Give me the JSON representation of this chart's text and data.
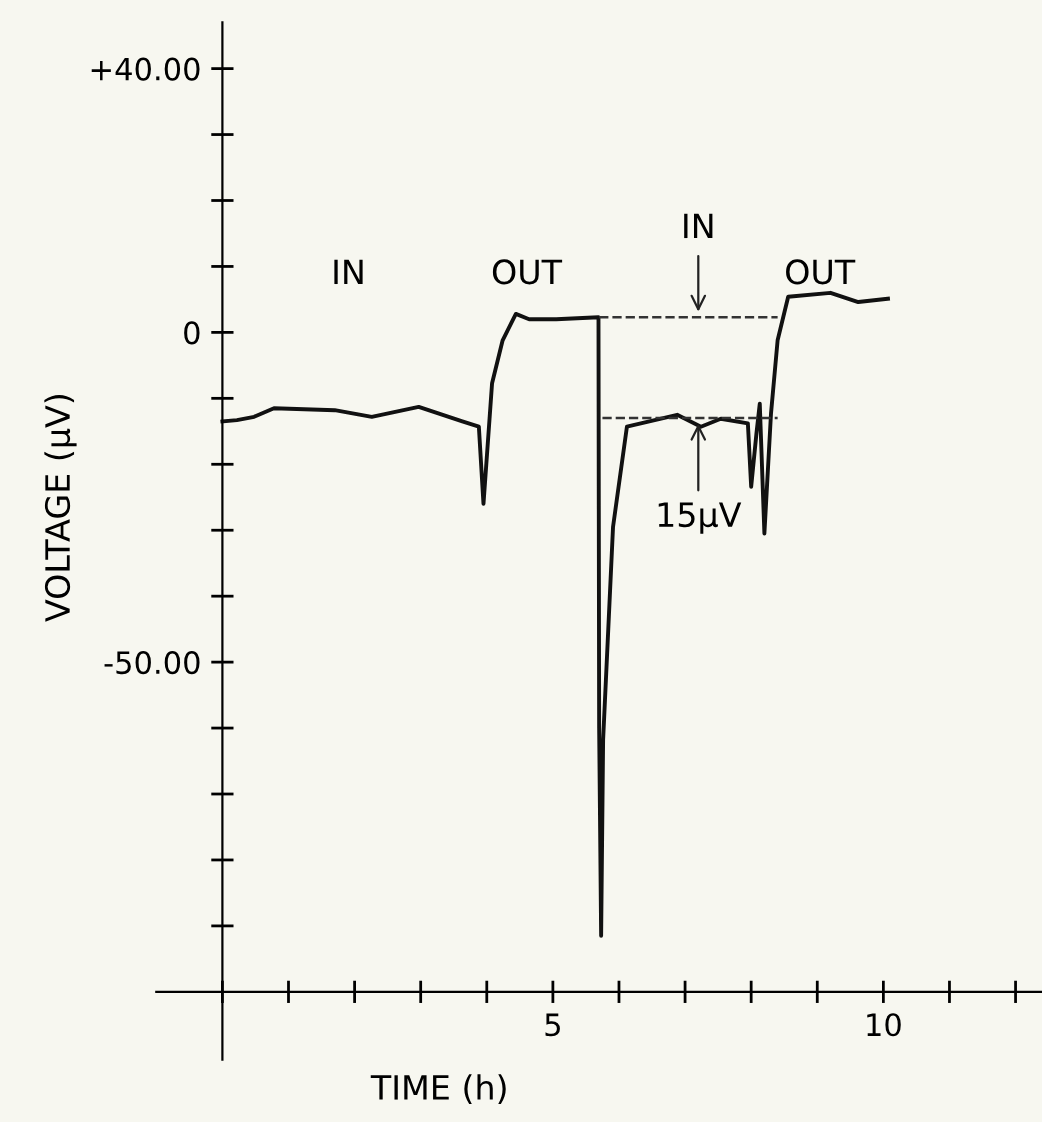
{
  "chart_data": {
    "type": "line",
    "xlabel": "TIME (h)",
    "ylabel": "VOLTAGE (μV)",
    "xlim": [
      -1,
      12.4
    ],
    "ylim": [
      -100,
      47
    ],
    "xticks": [
      {
        "value": 0,
        "label": null
      },
      {
        "value": 1,
        "label": null
      },
      {
        "value": 2,
        "label": null
      },
      {
        "value": 3,
        "label": null
      },
      {
        "value": 4,
        "label": null
      },
      5,
      {
        "value": 6,
        "label": null
      },
      {
        "value": 7,
        "label": null
      },
      {
        "value": 8,
        "label": null
      },
      {
        "value": 9,
        "label": null
      },
      10,
      {
        "value": 11,
        "label": null
      },
      {
        "value": 12,
        "label": null
      }
    ],
    "yticks": [
      {
        "value": 40,
        "label": "+40.00"
      },
      {
        "value": 30,
        "label": null
      },
      {
        "value": 20,
        "label": null
      },
      {
        "value": 10,
        "label": null
      },
      0,
      {
        "value": -10,
        "label": null
      },
      {
        "value": -20,
        "label": null
      },
      {
        "value": -30,
        "label": null
      },
      {
        "value": -40,
        "label": null
      },
      {
        "value": -50,
        "label": "-50.00"
      },
      {
        "value": -60,
        "label": null
      },
      {
        "value": -70,
        "label": null
      },
      {
        "value": -80,
        "label": null
      },
      {
        "value": -90,
        "label": null
      }
    ],
    "grid": false,
    "legend": false,
    "marker": "none",
    "series": [
      {
        "color": "#111111",
        "line_style": "solid",
        "x": [
          0,
          0.22,
          0.48,
          0.78,
          1.7,
          2.26,
          2.97,
          3.63,
          3.88,
          3.95,
          4.08,
          4.24,
          4.44,
          4.64,
          5.05,
          5.69,
          5.7,
          5.73,
          5.76,
          5.91,
          6.12,
          6.88,
          7.24,
          7.54,
          7.95,
          8.0,
          8.08,
          8.13,
          8.2,
          8.3,
          8.4,
          8.56,
          9.2,
          9.62,
          10.07
        ],
        "values": [
          -13.5,
          -13.3,
          -12.8,
          -11.5,
          -11.8,
          -12.8,
          -11.3,
          -13.5,
          -14.3,
          -26,
          -7.7,
          -1.2,
          2.8,
          2.0,
          2.0,
          2.3,
          -60,
          -91.5,
          -61.8,
          -29.5,
          -14.3,
          -12.5,
          -14.3,
          -13.1,
          -13.8,
          -23.4,
          -15.3,
          -10.8,
          -30.5,
          -12.3,
          -1.2,
          5.4,
          6.0,
          4.6,
          5.1
        ]
      },
      {
        "color": "#333333",
        "line_style": "dashed",
        "x": [
          5.7,
          8.4
        ],
        "values": [
          2.3,
          2.3
        ]
      },
      {
        "color": "#333333",
        "line_style": "dashed",
        "x": [
          5.75,
          8.4
        ],
        "values": [
          -13,
          -13
        ]
      }
    ],
    "annotations": [
      "IN",
      "OUT",
      {
        "text": "IN",
        "x": 7.2,
        "y": 2.3
      },
      "OUT",
      {
        "text": "15μV",
        "x": 7.2,
        "y": -13
      }
    ]
  }
}
